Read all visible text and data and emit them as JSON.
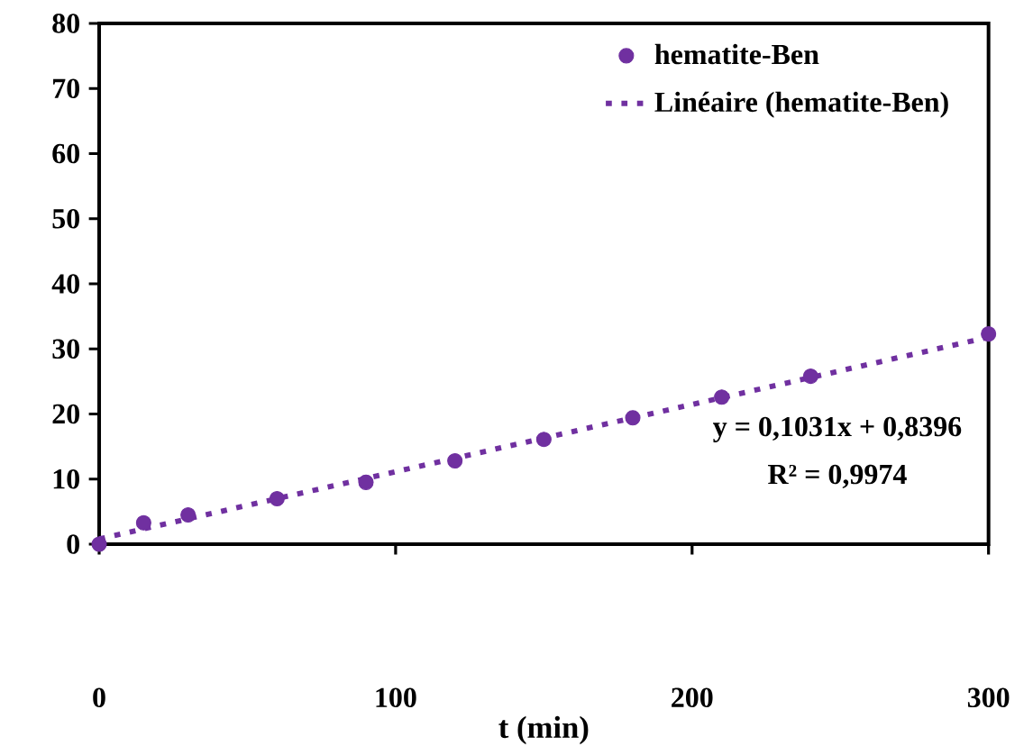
{
  "chart_data": {
    "type": "scatter",
    "xlabel": "t (min)",
    "xlim": [
      0,
      300
    ],
    "ylim": [
      0,
      80
    ],
    "xticks": [
      0,
      100,
      200,
      300
    ],
    "yticks": [
      0,
      10,
      20,
      30,
      40,
      50,
      60,
      70,
      80
    ],
    "grid": false,
    "legend": "top right",
    "series": [
      {
        "name": "hematite-Ben",
        "type": "scatter",
        "marker": "circle",
        "color": "#7030a0",
        "x": [
          0,
          15,
          30,
          60,
          90,
          120,
          150,
          180,
          210,
          240,
          300
        ],
        "values": [
          0,
          3.3,
          4.5,
          7.0,
          9.5,
          12.8,
          16.1,
          19.4,
          22.6,
          25.8,
          32.3
        ]
      },
      {
        "name": "Linéaire (hematite-Ben)",
        "type": "line",
        "marker": "none",
        "line_style": "dotted",
        "color": "#7030a0",
        "x": [
          0,
          300
        ],
        "values": [
          0.8,
          31.8
        ]
      }
    ],
    "annotations": [
      "y = 0,1031x + 0,8396",
      "R² = 0,9974"
    ]
  }
}
